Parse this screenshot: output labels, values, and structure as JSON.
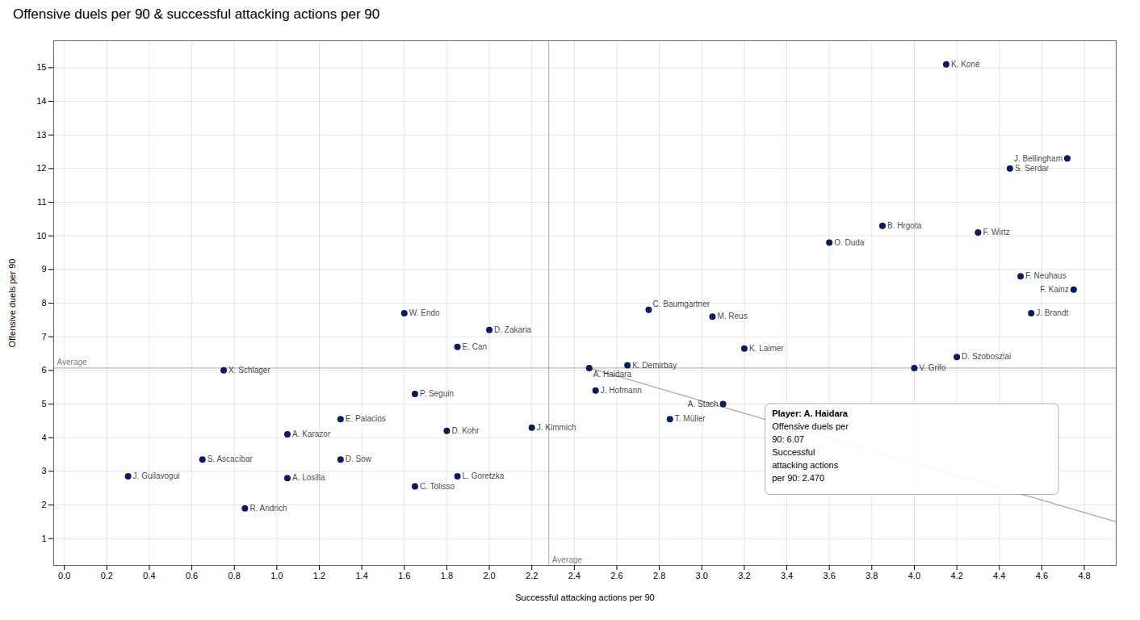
{
  "chart_data": {
    "type": "scatter",
    "title": "Offensive duels per 90 & successful attacking actions per 90",
    "xlabel": "Successful attacking actions per 90",
    "ylabel": "Offensive duels per 90",
    "color": "#0D1B5E",
    "labels": [
      "K. Koné",
      "J. Bellingham",
      "S. Serdar",
      "B. Hrgota",
      "F. Wirtz",
      "O. Duda",
      "F. Neuhaus",
      "J. Brandt",
      "F. Kainz",
      "C. Baumgartner",
      "M. Reus",
      "W. Endo",
      "D. Zakaria",
      "E. Can",
      "K. Laimer",
      "K. Demirbay",
      "A. Haidara",
      "V. Grifo",
      "D. Szoboszlai",
      "X. Schlager",
      "J. Hofmann",
      "T. Müller",
      "A. Stach",
      "E. Palacios",
      "P. Seguin",
      "D. Kohr",
      "A. Karazor",
      "D. Sow",
      "L. Goretzka",
      "J. Kimmich",
      "C. Tolisso",
      "A. Losilla",
      "S. Ascacíbar",
      "J. Guilavogui",
      "R. Andrich"
    ],
    "x": [
      4.15,
      4.72,
      4.45,
      3.85,
      4.3,
      3.6,
      4.5,
      4.55,
      4.75,
      2.75,
      3.05,
      1.6,
      2.0,
      1.85,
      3.2,
      2.65,
      2.47,
      4.0,
      4.2,
      0.75,
      2.5,
      2.85,
      3.1,
      1.3,
      1.65,
      1.8,
      1.05,
      1.3,
      1.85,
      2.2,
      1.65,
      1.05,
      0.65,
      0.3,
      0.85
    ],
    "values": [
      15.1,
      12.3,
      12.0,
      10.3,
      10.1,
      9.8,
      8.8,
      7.7,
      8.4,
      7.8,
      7.6,
      7.7,
      7.2,
      6.7,
      6.65,
      6.15,
      6.07,
      6.07,
      6.4,
      6.0,
      5.4,
      4.55,
      5.0,
      4.55,
      5.3,
      4.2,
      4.1,
      3.35,
      2.85,
      4.3,
      2.55,
      2.8,
      3.35,
      2.85,
      1.9
    ],
    "xlim": [
      -0.05,
      4.95
    ],
    "ylim": [
      0.2,
      15.8
    ],
    "xticks": [
      {
        "value": 0.0,
        "label": "0.0"
      },
      0.2,
      0.4,
      0.6,
      0.8,
      {
        "value": 1.0,
        "label": "1.0"
      },
      1.2,
      1.4,
      1.6,
      1.8,
      {
        "value": 2.0,
        "label": "2.0"
      },
      2.2,
      2.4,
      2.6,
      2.8,
      {
        "value": 3.0,
        "label": "3.0"
      },
      3.2,
      3.4,
      3.6,
      3.8,
      {
        "value": 4.0,
        "label": "4.0"
      },
      4.2,
      4.4,
      4.6,
      4.8
    ],
    "yticks": [
      1,
      2,
      3,
      4,
      5,
      6,
      7,
      8,
      9,
      10,
      11,
      12,
      13,
      14,
      15
    ],
    "grid": true,
    "reference_lines": [
      {
        "axis": "x",
        "value": 2.28,
        "label": "Average"
      },
      {
        "axis": "y",
        "value": 6.07,
        "label": "Average"
      }
    ],
    "trend_line": {
      "x": [
        2.47,
        4.95
      ],
      "y": [
        6.07,
        1.5
      ]
    },
    "annotations": [
      {
        "type": "box",
        "x": 3.3,
        "y": 2.3,
        "width": 1.38,
        "height": 2.7,
        "lines": [
          {
            "text": "Player: A. Haidara",
            "bold": true
          },
          {
            "text": "Offensive duels per",
            "bold": false
          },
          {
            "text": "90: 6.07",
            "bold": false
          },
          {
            "text": "Successful",
            "bold": false
          },
          {
            "text": "attacking actions",
            "bold": false
          },
          {
            "text": "per 90: 2.470",
            "bold": false
          }
        ]
      }
    ]
  }
}
